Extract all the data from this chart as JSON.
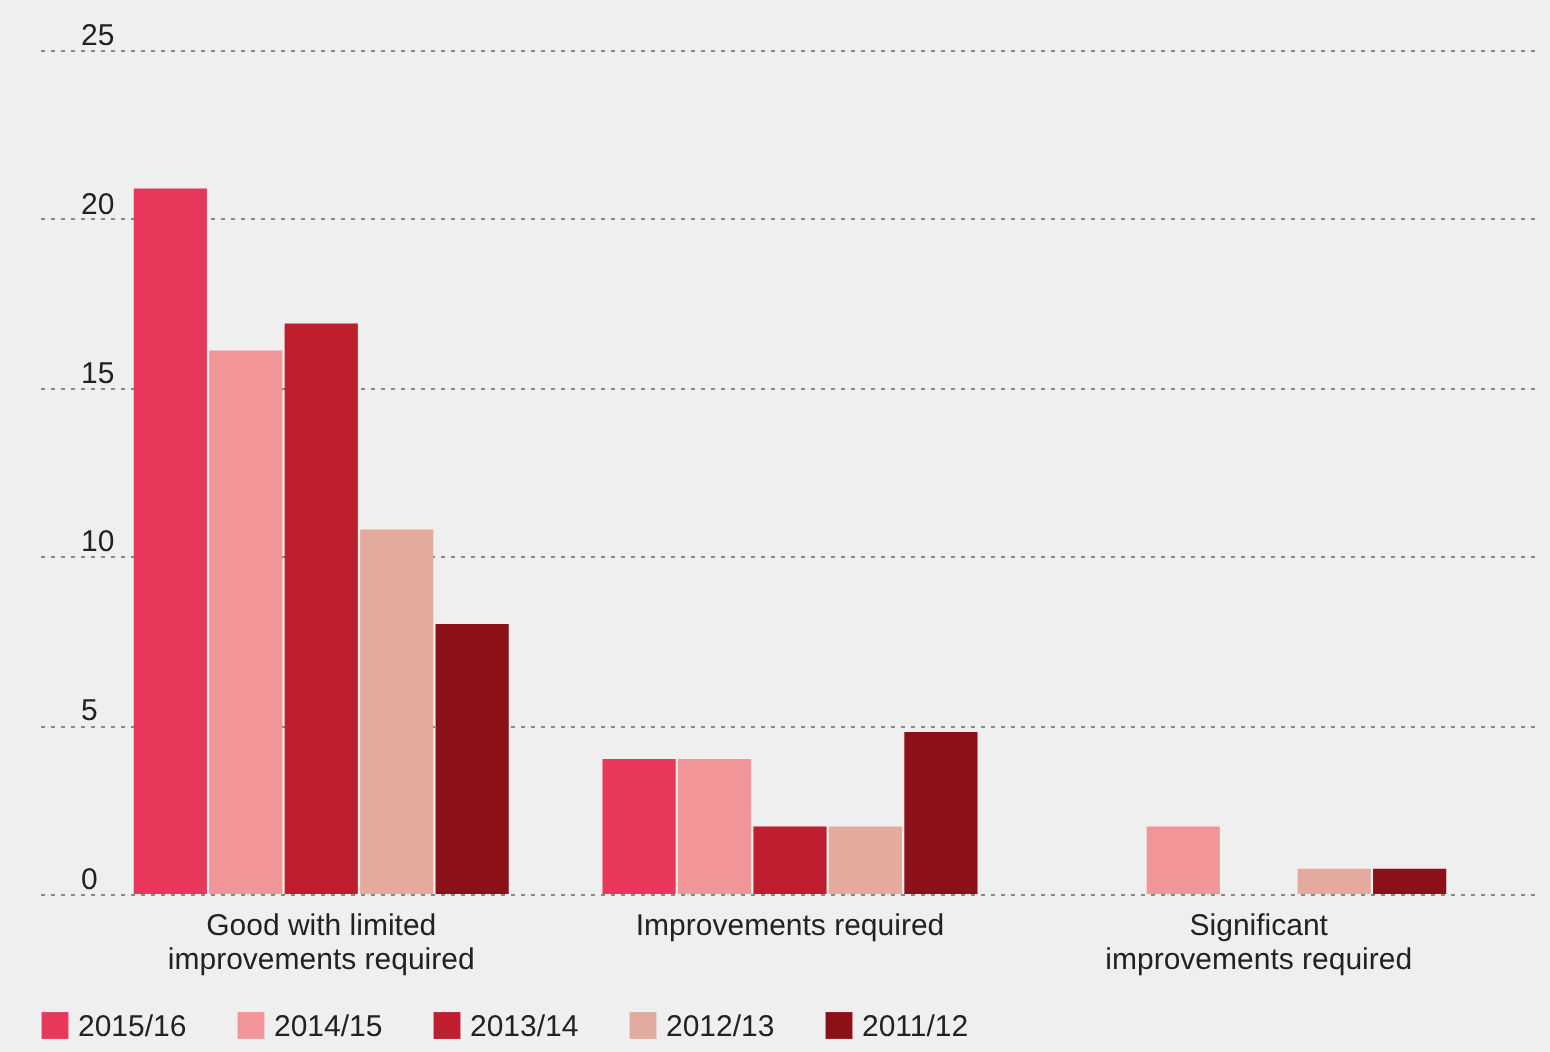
{
  "chart_data": {
    "type": "bar",
    "categories": [
      "Good with limited\nimprovements required",
      "Improvements required",
      "Significant\nimprovements required"
    ],
    "series": [
      {
        "name": "2015/16",
        "color": "#e8375a",
        "values": [
          20.9,
          4,
          null
        ]
      },
      {
        "name": "2014/15",
        "color": "#f29598",
        "values": [
          16.1,
          4,
          2
        ]
      },
      {
        "name": "2013/14",
        "color": "#be1e2d",
        "values": [
          16.9,
          2,
          null
        ]
      },
      {
        "name": "2012/13",
        "color": "#e3aa9e",
        "values": [
          10.8,
          2,
          0.75
        ]
      },
      {
        "name": "2011/12",
        "color": "#8b1018",
        "values": [
          8,
          4.8,
          0.75
        ]
      }
    ],
    "ylim": [
      0,
      25
    ],
    "yticks": [
      0,
      5,
      10,
      15,
      20,
      25
    ],
    "grid": "y",
    "legend": "bottom left"
  }
}
